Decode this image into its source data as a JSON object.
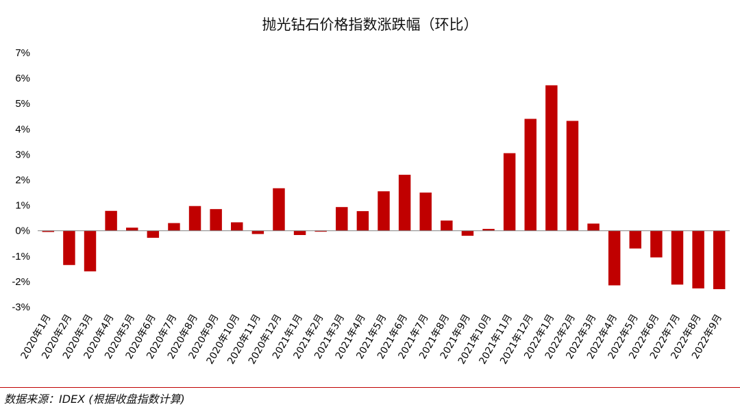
{
  "title": "抛光钻石价格指数涨跌幅（环比）",
  "source": "数据来源：IDEX (根据收盘指数计算)",
  "colors": {
    "bar": "#c00000",
    "axis": "#7f7f7f",
    "divider": "#c00000"
  },
  "chart_data": {
    "type": "bar",
    "title": "抛光钻石价格指数涨跌幅（环比）",
    "categories": [
      "2020年1月",
      "2020年2月",
      "2020年3月",
      "2020年4月",
      "2020年5月",
      "2020年6月",
      "2020年7月",
      "2020年8月",
      "2020年9月",
      "2020年10月",
      "2020年11月",
      "2020年12月",
      "2021年1月",
      "2021年2月",
      "2021年3月",
      "2021年4月",
      "2021年5月",
      "2021年6月",
      "2021年7月",
      "2021年8月",
      "2021年9月",
      "2021年10月",
      "2021年11月",
      "2021年12月",
      "2022年1月",
      "2022年2月",
      "2022年3月",
      "2022年4月",
      "2022年5月",
      "2022年6月",
      "2022年7月",
      "2022年8月",
      "2022年9月"
    ],
    "values": [
      -0.05,
      -1.35,
      -1.6,
      0.78,
      0.12,
      -0.28,
      0.3,
      0.97,
      0.85,
      0.33,
      -0.13,
      1.67,
      -0.17,
      -0.04,
      0.93,
      0.77,
      1.55,
      2.2,
      1.5,
      0.4,
      -0.2,
      0.07,
      3.05,
      4.4,
      5.72,
      4.32,
      0.28,
      -2.15,
      -0.7,
      -1.05,
      -2.12,
      -2.27,
      -2.3
    ],
    "ytick_labels": [
      "7%",
      "6%",
      "5%",
      "4%",
      "3%",
      "2%",
      "1%",
      "0%",
      "-1%",
      "-2%",
      "-3%"
    ],
    "yticks": [
      7,
      6,
      5,
      4,
      3,
      2,
      1,
      0,
      -1,
      -2,
      -3
    ],
    "ylim": [
      -3,
      7
    ],
    "unit": "%",
    "grid": false,
    "legend": "none"
  }
}
